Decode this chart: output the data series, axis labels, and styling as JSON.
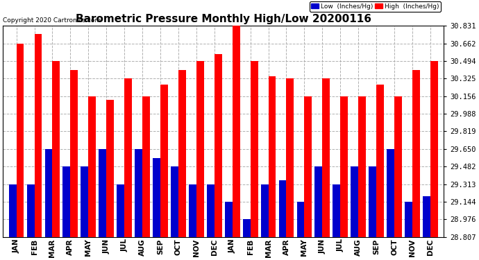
{
  "title": "Barometric Pressure Monthly High/Low 20200116",
  "copyright_text": "Copyright 2020 Cartronics.com",
  "categories": [
    "JAN",
    "FEB",
    "MAR",
    "APR",
    "MAY",
    "JUN",
    "JUL",
    "AUG",
    "SEP",
    "OCT",
    "NOV",
    "DEC",
    "JAN",
    "FEB",
    "MAR",
    "APR",
    "MAY",
    "JUN",
    "JUL",
    "AUG",
    "SEP",
    "OCT",
    "NOV",
    "DEC"
  ],
  "high_values": [
    30.662,
    30.75,
    30.494,
    30.41,
    30.156,
    30.12,
    30.325,
    30.156,
    30.27,
    30.41,
    30.494,
    30.56,
    30.831,
    30.494,
    30.35,
    30.325,
    30.156,
    30.325,
    30.156,
    30.156,
    30.27,
    30.156,
    30.41,
    30.494
  ],
  "low_values": [
    29.313,
    29.313,
    29.65,
    29.482,
    29.482,
    29.65,
    29.313,
    29.65,
    29.56,
    29.482,
    29.313,
    29.313,
    29.144,
    28.976,
    29.313,
    29.35,
    29.144,
    29.482,
    29.313,
    29.482,
    29.482,
    29.65,
    29.144,
    29.2
  ],
  "yticks": [
    28.807,
    28.976,
    29.144,
    29.313,
    29.482,
    29.65,
    29.819,
    29.988,
    30.156,
    30.325,
    30.494,
    30.662,
    30.831
  ],
  "ymin": 28.807,
  "ymax": 30.831,
  "bar_color_high": "#ff0000",
  "bar_color_low": "#0000cc",
  "legend_low_label": "Low  (Inches/Hg)",
  "legend_high_label": "High  (Inches/Hg)",
  "background_color": "#ffffff",
  "grid_color": "#b0b0b0",
  "title_fontsize": 11,
  "copyright_fontsize": 6.5,
  "tick_fontsize": 7.5,
  "bar_width": 0.42
}
